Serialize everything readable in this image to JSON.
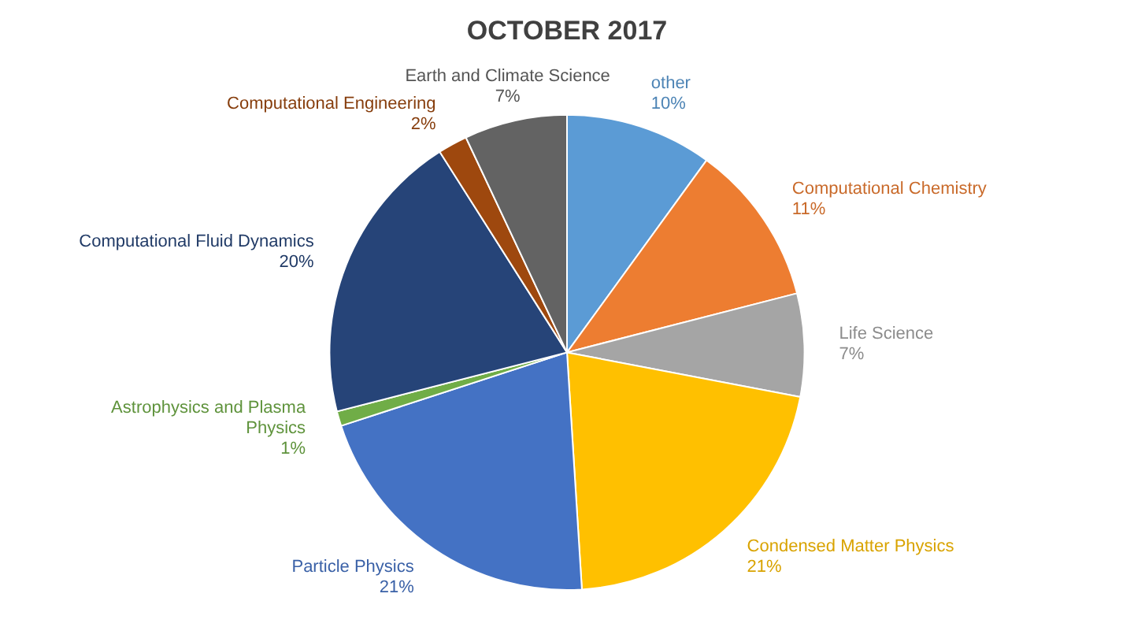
{
  "chart_data": {
    "type": "pie",
    "title": "OCTOBER 2017",
    "categories": [
      "other",
      "Computational Chemistry",
      "Life Science",
      "Condensed Matter Physics",
      "Particle Physics",
      "Astrophysics and Plasma Physics",
      "Computational Fluid Dynamics",
      "Computational Engineering",
      "Earth and Climate Science"
    ],
    "values": [
      10,
      11,
      7,
      21,
      21,
      1,
      20,
      2,
      7
    ],
    "value_labels": [
      "10%",
      "11%",
      "7%",
      "21%",
      "21%",
      "1%",
      "20%",
      "2%",
      "7%"
    ],
    "colors": [
      "#5b9bd5",
      "#ed7d31",
      "#a5a5a5",
      "#ffc000",
      "#4472c4",
      "#70ad47",
      "#264478",
      "#9e480e",
      "#636363"
    ],
    "legend": false
  }
}
